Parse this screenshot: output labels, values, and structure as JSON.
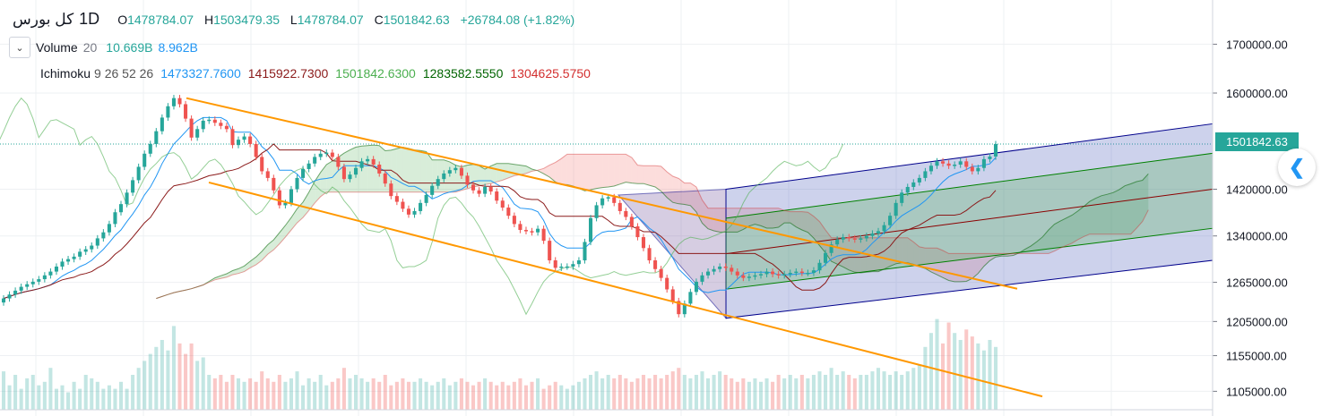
{
  "header": {
    "symbol": "کل بورس",
    "timeframe": "1D",
    "open_key": "O",
    "open": "1478784.07",
    "high_key": "H",
    "high": "1503479.35",
    "low_key": "L",
    "low": "1478784.07",
    "close_key": "C",
    "close": "1501842.63",
    "change": "+26784.08 (+1.82%)"
  },
  "volume_legend": {
    "name": "Volume",
    "period": "20",
    "value": "10.669B",
    "ma_value": "8.962B"
  },
  "ichimoku_legend": {
    "name": "Ichimoku",
    "params": "9 26 52 26",
    "conversion": "1473327.7600",
    "base": "1415922.7300",
    "lagging": "1501842.6300",
    "lead1": "1283582.5550",
    "lead2": "1304625.5750"
  },
  "colors": {
    "up": "#26a69a",
    "down": "#ef5350",
    "conversion": "#2196f3",
    "base": "#8b1a1a",
    "lagging": "#4caf50",
    "lead1": "#006400",
    "lead2": "#d32f2f",
    "trend": "#ff9800",
    "channel_outer": "#00008b",
    "channel_inner": "#008000",
    "channel_mid": "#8b0000"
  },
  "icons": {
    "collapse": "chevron-down-icon",
    "nav": "chevron-left-icon"
  },
  "chart_data": {
    "type": "candlestick",
    "timeframe": "1D",
    "y_scale": "log",
    "ylim": [
      1080000,
      1780000
    ],
    "y_ticks": [
      "1700000.00",
      "1600000.00",
      "1501842.63",
      "1420000.00",
      "1340000.00",
      "1265000.00",
      "1205000.00",
      "1155000.00",
      "1105000.00"
    ],
    "last_price": "1501842.63",
    "ohlc_last": {
      "open": 1478784.07,
      "high": 1503479.35,
      "low": 1478784.07,
      "close": 1501842.63
    },
    "close_series": [
      1240000,
      1246000,
      1252000,
      1258000,
      1262000,
      1266000,
      1270000,
      1276000,
      1282000,
      1290000,
      1298000,
      1302000,
      1306000,
      1314000,
      1318000,
      1324000,
      1336000,
      1346000,
      1360000,
      1380000,
      1394000,
      1414000,
      1436000,
      1460000,
      1484000,
      1502000,
      1526000,
      1552000,
      1574000,
      1590000,
      1578000,
      1550000,
      1514000,
      1530000,
      1546000,
      1548000,
      1542000,
      1536000,
      1530000,
      1500000,
      1510000,
      1516000,
      1502000,
      1478000,
      1452000,
      1440000,
      1418000,
      1392000,
      1396000,
      1420000,
      1440000,
      1456000,
      1466000,
      1478000,
      1484000,
      1486000,
      1478000,
      1460000,
      1438000,
      1446000,
      1458000,
      1470000,
      1474000,
      1464000,
      1448000,
      1430000,
      1408000,
      1398000,
      1386000,
      1376000,
      1382000,
      1396000,
      1410000,
      1426000,
      1438000,
      1448000,
      1454000,
      1458000,
      1444000,
      1428000,
      1418000,
      1412000,
      1424000,
      1416000,
      1400000,
      1388000,
      1374000,
      1360000,
      1350000,
      1348000,
      1346000,
      1352000,
      1332000,
      1300000,
      1288000,
      1290000,
      1290000,
      1294000,
      1300000,
      1330000,
      1370000,
      1392000,
      1404000,
      1406000,
      1396000,
      1382000,
      1372000,
      1356000,
      1338000,
      1320000,
      1300000,
      1286000,
      1272000,
      1254000,
      1236000,
      1216000,
      1232000,
      1250000,
      1266000,
      1276000,
      1282000,
      1286000,
      1290000,
      1288000,
      1282000,
      1276000,
      1272000,
      1274000,
      1276000,
      1278000,
      1282000,
      1278000,
      1276000,
      1278000,
      1280000,
      1282000,
      1280000,
      1280000,
      1284000,
      1296000,
      1312000,
      1326000,
      1334000,
      1338000,
      1336000,
      1334000,
      1336000,
      1340000,
      1344000,
      1348000,
      1358000,
      1374000,
      1396000,
      1414000,
      1424000,
      1432000,
      1440000,
      1452000,
      1462000,
      1470000,
      1466000,
      1462000,
      1464000,
      1470000,
      1460000,
      1452000,
      1458000,
      1474000,
      1478784.07,
      1501842.63
    ],
    "volume_series": [
      0.55,
      0.35,
      0.5,
      0.3,
      0.45,
      0.5,
      0.35,
      0.4,
      0.6,
      0.3,
      0.35,
      0.25,
      0.4,
      0.3,
      0.5,
      0.45,
      0.4,
      0.3,
      0.35,
      0.3,
      0.4,
      0.3,
      0.5,
      0.6,
      0.7,
      0.8,
      0.9,
      1.0,
      0.85,
      1.2,
      0.95,
      0.8,
      0.95,
      0.7,
      0.75,
      0.5,
      0.45,
      0.5,
      0.4,
      0.5,
      0.45,
      0.4,
      0.45,
      0.4,
      0.55,
      0.45,
      0.4,
      0.5,
      0.4,
      0.45,
      0.55,
      0.35,
      0.45,
      0.4,
      0.5,
      0.35,
      0.4,
      0.45,
      0.6,
      0.45,
      0.5,
      0.45,
      0.4,
      0.45,
      0.4,
      0.5,
      0.35,
      0.4,
      0.45,
      0.4,
      0.4,
      0.45,
      0.4,
      0.35,
      0.4,
      0.45,
      0.35,
      0.4,
      0.45,
      0.4,
      0.35,
      0.4,
      0.45,
      0.4,
      0.35,
      0.4,
      0.35,
      0.4,
      0.45,
      0.35,
      0.4,
      0.45,
      0.3,
      0.35,
      0.4,
      0.35,
      0.3,
      0.35,
      0.4,
      0.45,
      0.5,
      0.55,
      0.45,
      0.5,
      0.45,
      0.5,
      0.45,
      0.4,
      0.45,
      0.5,
      0.45,
      0.5,
      0.45,
      0.5,
      0.55,
      0.6,
      0.5,
      0.45,
      0.5,
      0.55,
      0.45,
      0.5,
      0.55,
      0.5,
      0.45,
      0.4,
      0.45,
      0.4,
      0.45,
      0.4,
      0.45,
      0.4,
      0.5,
      0.45,
      0.5,
      0.45,
      0.5,
      0.45,
      0.5,
      0.55,
      0.5,
      0.6,
      0.5,
      0.55,
      0.5,
      0.45,
      0.5,
      0.5,
      0.55,
      0.6,
      0.55,
      0.5,
      0.55,
      0.5,
      0.55,
      0.6,
      0.65,
      0.9,
      1.1,
      1.3,
      0.95,
      1.25,
      1.1,
      1.0,
      1.15,
      1.05,
      0.95,
      0.85,
      1.0,
      0.9,
      1.05,
      0.95,
      1.0,
      1.05,
      1.15
    ],
    "channels": {
      "descending_trend": [
        {
          "from": [
            1590000,
            1
          ],
          "to": [
            1255000,
            1
          ]
        }
      ],
      "regression_channel": {
        "upper_end": 1540000,
        "mid_end": 1420000,
        "lower_end": 1300000
      }
    },
    "indicators": [
      "Volume 20",
      "Ichimoku 9 26 52 26"
    ]
  }
}
